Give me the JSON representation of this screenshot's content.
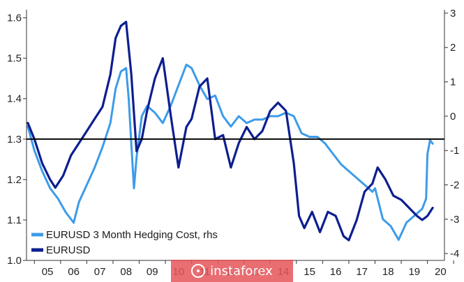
{
  "chart_data": {
    "type": "line",
    "title": "",
    "xlabel": "",
    "ylabel": "",
    "x_tick_labels": [
      "05",
      "06",
      "07",
      "08",
      "09",
      "10",
      "11",
      "12",
      "13",
      "14",
      "15",
      "16",
      "17",
      "18",
      "19",
      "20"
    ],
    "y_left": {
      "ticks": [
        "1.0",
        "1.1",
        "1.2",
        "1.3",
        "1.4",
        "1.5",
        "1.6"
      ],
      "ylim": [
        1.0,
        1.62
      ]
    },
    "y_right": {
      "ticks": [
        "3",
        "2",
        "1",
        "0",
        "-1",
        "-2",
        "-3",
        "-4"
      ],
      "ylim": [
        -4.2,
        3.1
      ]
    },
    "reference_line": {
      "axis": "left",
      "value": 1.3,
      "color": "#000000"
    },
    "grid": false,
    "legend": {
      "placement": "bottom-left"
    },
    "series": [
      {
        "name": "EURUSD 3 Month Hedging Cost, rhs",
        "axis": "right",
        "color": "#3d9be9",
        "x": [
          2004.75,
          2005.0,
          2005.3,
          2005.6,
          2005.9,
          2006.2,
          2006.5,
          2006.7,
          2007.0,
          2007.3,
          2007.6,
          2007.9,
          2008.1,
          2008.3,
          2008.5,
          2008.6,
          2008.7,
          2008.8,
          2008.9,
          2009.1,
          2009.3,
          2009.6,
          2009.9,
          2010.2,
          2010.5,
          2010.8,
          2011.0,
          2011.3,
          2011.6,
          2011.9,
          2012.2,
          2012.5,
          2012.8,
          2013.1,
          2013.4,
          2013.7,
          2014.0,
          2014.3,
          2014.6,
          2014.9,
          2015.2,
          2015.5,
          2015.8,
          2016.1,
          2016.4,
          2016.7,
          2017.0,
          2017.3,
          2017.6,
          2017.9,
          2018.0,
          2018.3,
          2018.6,
          2018.9,
          2019.2,
          2019.5,
          2019.8,
          2019.95,
          2020.0,
          2020.1,
          2020.2
        ],
        "values": [
          -0.3,
          -1.0,
          -1.6,
          -2.1,
          -2.4,
          -2.8,
          -3.1,
          -2.5,
          -2.0,
          -1.5,
          -0.9,
          -0.2,
          0.8,
          1.3,
          1.4,
          0.5,
          -0.8,
          -2.1,
          -1.2,
          0.0,
          0.3,
          0.1,
          -0.2,
          0.3,
          0.9,
          1.5,
          1.4,
          0.9,
          0.5,
          0.6,
          0.0,
          -0.3,
          0.0,
          -0.2,
          -0.1,
          -0.1,
          0.0,
          0.0,
          0.1,
          0.0,
          -0.5,
          -0.6,
          -0.6,
          -0.8,
          -1.1,
          -1.4,
          -1.6,
          -1.8,
          -2.0,
          -2.2,
          -2.1,
          -3.0,
          -3.2,
          -3.6,
          -3.1,
          -2.9,
          -2.7,
          -2.4,
          -1.1,
          -0.7,
          -0.8
        ]
      },
      {
        "name": "EURUSD",
        "axis": "left",
        "color": "#0d1e8f",
        "x": [
          2004.75,
          2005.0,
          2005.3,
          2005.6,
          2005.8,
          2006.1,
          2006.4,
          2006.7,
          2007.0,
          2007.3,
          2007.6,
          2007.9,
          2008.1,
          2008.3,
          2008.5,
          2008.7,
          2008.9,
          2009.1,
          2009.3,
          2009.6,
          2009.9,
          2010.2,
          2010.5,
          2010.8,
          2011.0,
          2011.3,
          2011.6,
          2011.9,
          2012.2,
          2012.5,
          2012.8,
          2013.1,
          2013.4,
          2013.7,
          2014.0,
          2014.3,
          2014.6,
          2014.9,
          2015.1,
          2015.3,
          2015.6,
          2015.9,
          2016.2,
          2016.5,
          2016.8,
          2017.0,
          2017.3,
          2017.6,
          2017.9,
          2018.1,
          2018.4,
          2018.7,
          2019.0,
          2019.3,
          2019.6,
          2019.8,
          2020.0,
          2020.2
        ],
        "values": [
          1.34,
          1.3,
          1.24,
          1.2,
          1.18,
          1.21,
          1.26,
          1.29,
          1.32,
          1.35,
          1.38,
          1.46,
          1.55,
          1.58,
          1.59,
          1.46,
          1.27,
          1.3,
          1.37,
          1.45,
          1.5,
          1.36,
          1.23,
          1.33,
          1.35,
          1.43,
          1.45,
          1.3,
          1.31,
          1.23,
          1.29,
          1.33,
          1.3,
          1.32,
          1.37,
          1.39,
          1.37,
          1.24,
          1.11,
          1.08,
          1.12,
          1.07,
          1.12,
          1.11,
          1.06,
          1.05,
          1.1,
          1.17,
          1.19,
          1.23,
          1.2,
          1.16,
          1.15,
          1.13,
          1.11,
          1.1,
          1.11,
          1.13
        ]
      }
    ]
  },
  "watermark": {
    "text": "instaforex"
  }
}
